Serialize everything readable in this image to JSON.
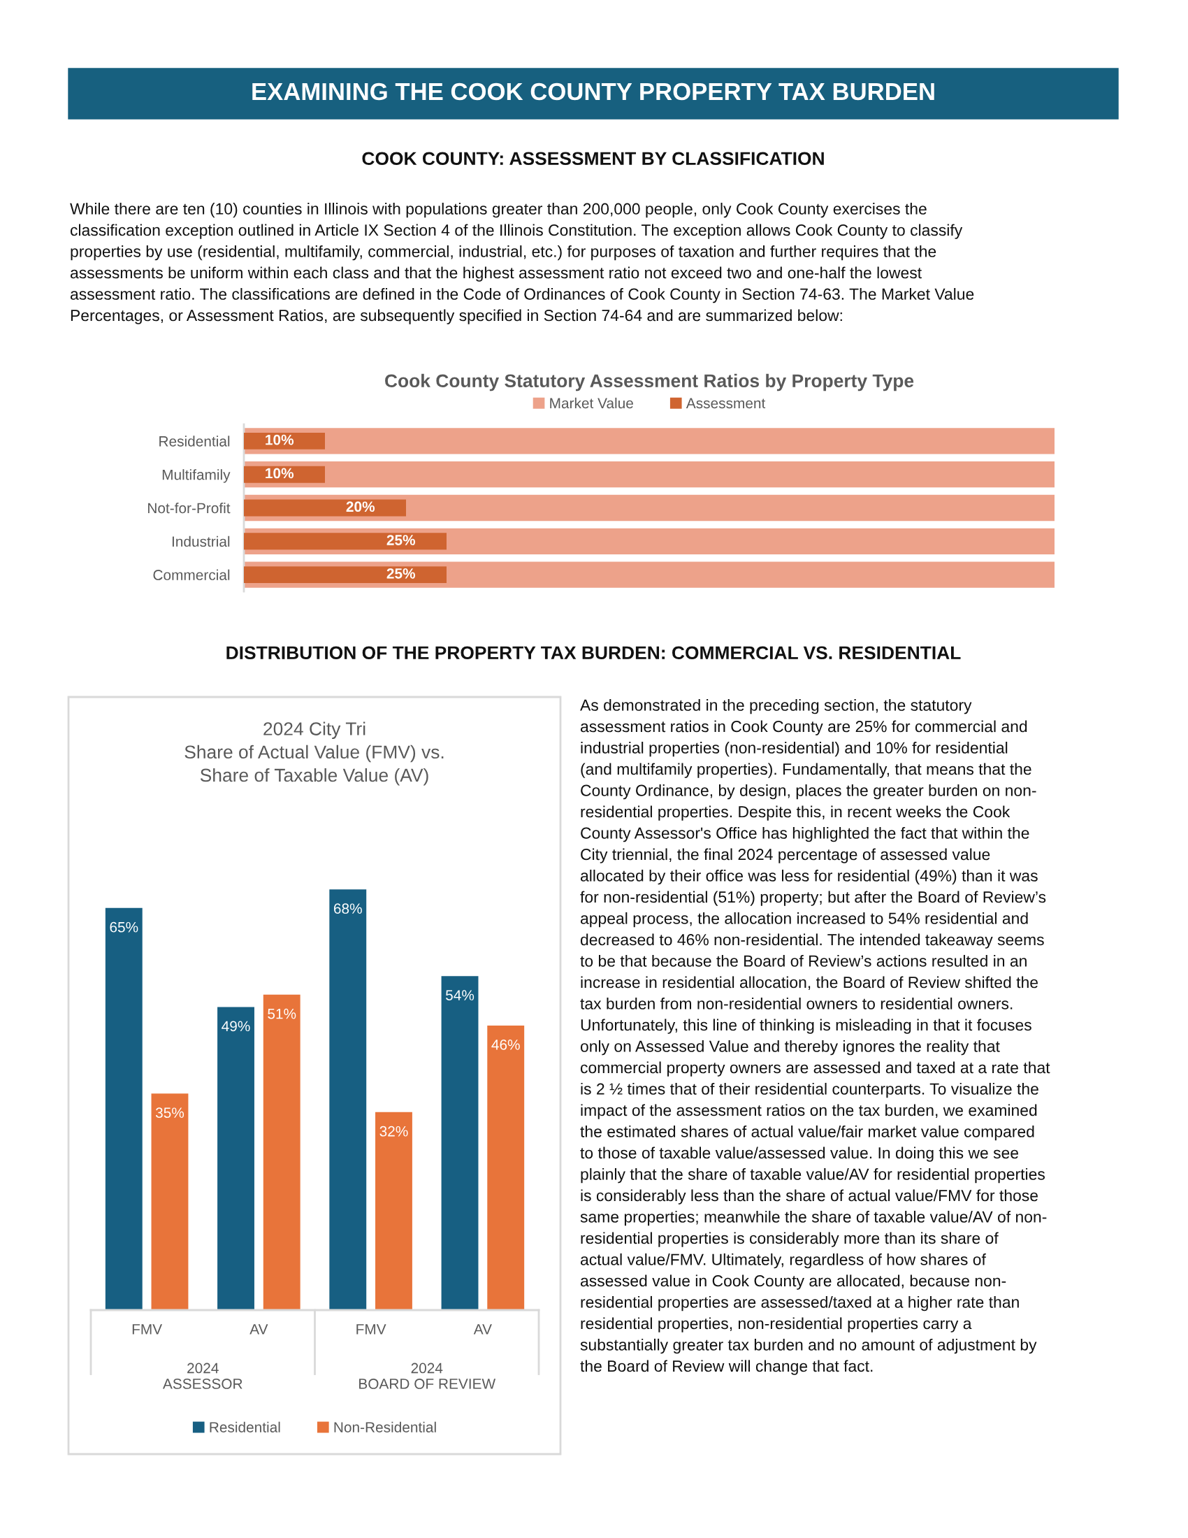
{
  "chart_data": [
    {
      "type": "bar",
      "orientation": "horizontal",
      "title": "Cook County Statutory Assessment Ratios by Property Type",
      "categories": [
        "Residential",
        "Multifamily",
        "Not-for-Profit",
        "Industrial",
        "Commercial"
      ],
      "series": [
        {
          "name": "Market Value",
          "color": "#eda28a",
          "values": [
            100,
            100,
            100,
            100,
            100
          ]
        },
        {
          "name": "Assessment",
          "color": "#cf6430",
          "values": [
            10,
            10,
            20,
            25,
            25
          ],
          "value_labels": [
            "10%",
            "10%",
            "20%",
            "25%",
            "25%"
          ]
        }
      ],
      "xlim": [
        0,
        100
      ],
      "tick_labels": "y",
      "legend": "top",
      "grid": false,
      "annotations": [
        "EXAMINING THE COOK COUNTY PROPERTY TAX BURDEN",
        "COOK COUNTY: ASSESSMENT BY CLASSIFICATION",
        "While there are ten (10) counties in Illinois with populations greater than 200,000 people, only Cook County exercises the\nclassification exception outlined in Article IX Section 4 of the Illinois Constitution. The exception allows Cook County to classify\nproperties by use (residential, multifamily, commercial, industrial, etc.) for purposes of taxation and further requires that the\nassessments be uniform within each class and that the highest assessment ratio not exceed two and one-half the lowest\nassessment ratio. The classifications are defined in the Code of Ordinances of Cook County in Section 74-63. The Market Value\nPercentages, or Assessment Ratios, are subsequently specified in Section 74-64 and are summarized below:"
      ]
    },
    {
      "type": "bar",
      "title": "2024 City Tri\nShare of Actual Value (FMV) vs.\nShare of Taxable Value (AV)",
      "categories": [
        "FMV",
        "AV",
        "FMV",
        "AV"
      ],
      "series": [
        {
          "name": "Residential",
          "color": "#175f82",
          "values": [
            65,
            49,
            68,
            54
          ],
          "value_labels": [
            "65%",
            "49%",
            "68%",
            "54%"
          ]
        },
        {
          "name": "Non-Residential",
          "color": "#e8743a",
          "values": [
            35,
            51,
            32,
            46
          ],
          "value_labels": [
            "35%",
            "51%",
            "32%",
            "46%"
          ]
        }
      ],
      "tick_labels": "x",
      "legend": "bottom",
      "grid": false,
      "annotations": [
        "DISTRIBUTION OF THE PROPERTY TAX BURDEN: COMMERCIAL VS. RESIDENTIAL",
        "As demonstrated in the preceding section, the statutory\nassessment ratios in Cook County are 25% for commercial and\nindustrial properties (non-residential) and 10% for residential\n(and multifamily properties). Fundamentally, that means that the\nCounty Ordinance, by design, places the greater burden on non-\nresidential properties. Despite this, in recent weeks the Cook\nCounty Assessor's Office has highlighted the fact that within the\nCity triennial, the final 2024 percentage of assessed value\nallocated by their office was less for residential (49%) than it was\nfor non-residential (51%) property; but after the Board of Review’s\nappeal process, the allocation increased to 54% residential and\ndecreased to 46% non-residential. The intended takeaway seems\nto be that because the Board of Review’s actions resulted in an\nincrease in residential allocation, the Board of Review shifted the\ntax burden from non-residential owners to residential owners.\nUnfortunately, this line of thinking is misleading in that it focuses\nonly on Assessed Value and thereby ignores the reality that\ncommercial property owners are assessed and taxed at a rate that\nis 2 ½ times that of their residential counterparts. To visualize the\nimpact of the assessment ratios on the tax burden, we examined\nthe estimated shares of actual value/fair market value compared\nto those of taxable value/assessed value. In doing this we see\nplainly that the share of taxable value/AV for residential properties\nis considerably less than the share of actual value/FMV for those\nsame properties; meanwhile the share of taxable value/AV of non-\nresidential properties is considerably more than its share of\nactual value/FMV. Ultimately, regardless of how shares of\nassessed value in Cook County are allocated, because non-\nresidential properties are assessed/taxed at a higher rate than\nresidential properties, non-residential properties carry a\nsubstantially greater tax burden and no amount of adjustment by\nthe Board of Review will change that fact.",
        "2024\nASSESSOR",
        "2024\nBOARD OF REVIEW"
      ]
    }
  ]
}
